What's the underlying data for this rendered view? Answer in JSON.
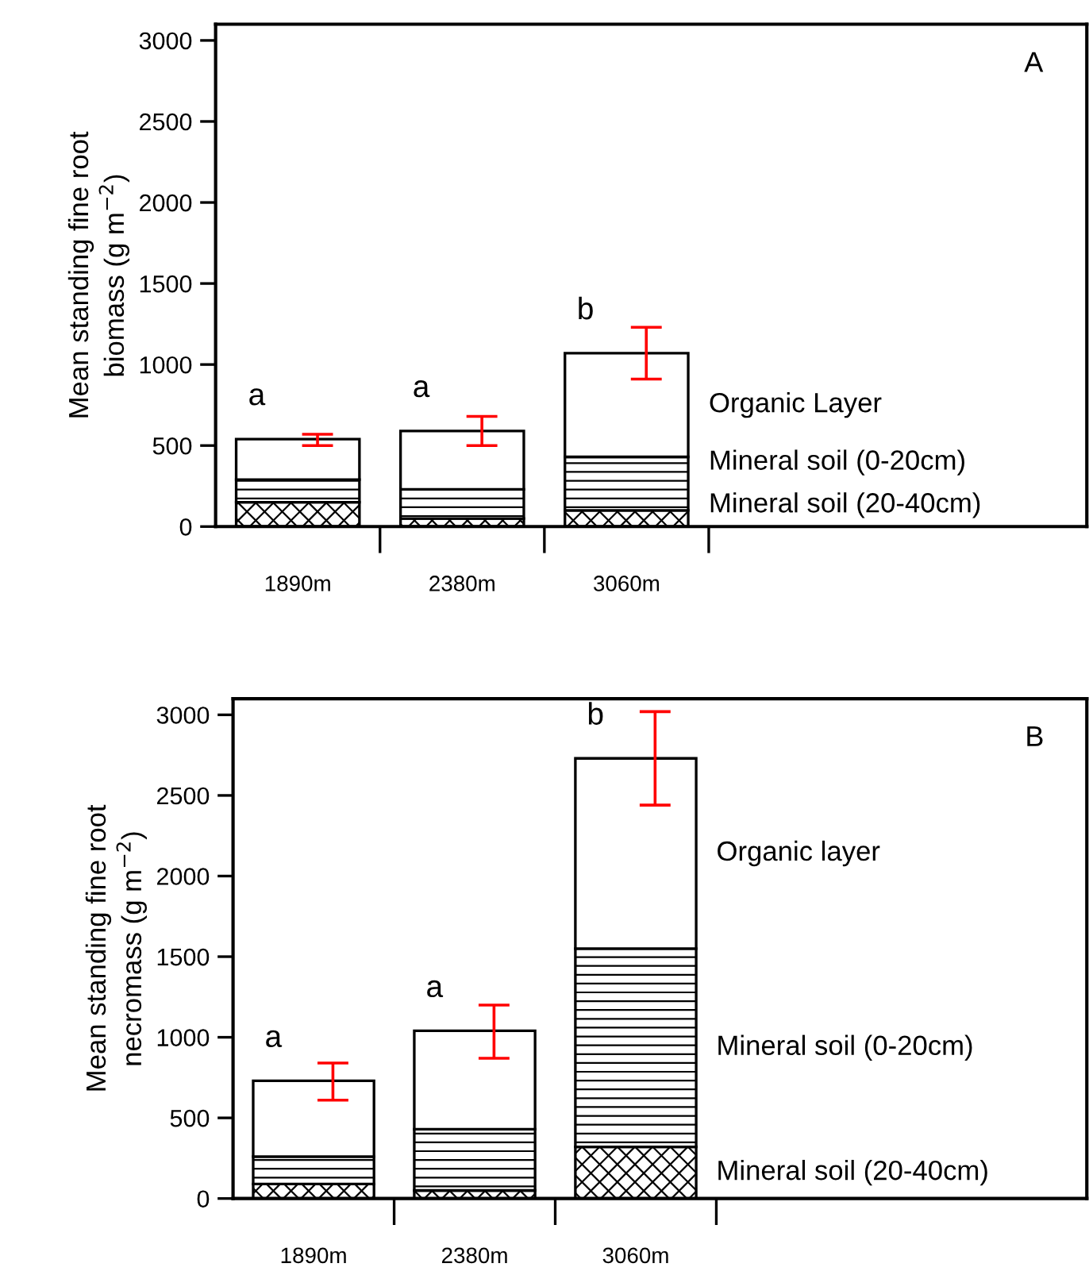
{
  "chart_data": [
    {
      "type": "bar",
      "stacked": true,
      "ylabel": "Mean standing fine root\nbiomass (g m$^{−2}$)",
      "categories": [
        "1890m",
        "2380m",
        "3060m"
      ],
      "ylim": [
        0,
        3100
      ],
      "yticks": [
        0,
        500,
        1000,
        1500,
        2000,
        2500,
        3000
      ],
      "grid": false,
      "legend": "right",
      "series": [
        {
          "name": "Mineral soil (20-40cm)",
          "values": [
            150,
            50,
            100
          ]
        },
        {
          "name": "Mineral soil (0-20cm)",
          "values": [
            140,
            180,
            330
          ]
        },
        {
          "name": "Organic Layer",
          "color": "#ffffff",
          "values": [
            250,
            360,
            640
          ],
          "errors": [
            [
              500,
              570
            ],
            [
              500,
              680
            ],
            [
              910,
              1230
            ]
          ]
        }
      ],
      "annotations": [
        "A",
        "a",
        "a",
        "b"
      ]
    },
    {
      "type": "bar",
      "stacked": true,
      "ylabel": "Mean standing fine root\nnecromass (g m$^{−2}$)",
      "categories": [
        "1890m",
        "2380m",
        "3060m"
      ],
      "ylim": [
        0,
        3100
      ],
      "yticks": [
        0,
        500,
        1000,
        1500,
        2000,
        2500,
        3000
      ],
      "grid": false,
      "legend": "right",
      "series": [
        {
          "name": "Mineral soil (20-40cm)",
          "values": [
            90,
            50,
            320
          ]
        },
        {
          "name": "Mineral soil (0-20cm)",
          "values": [
            170,
            380,
            1230
          ]
        },
        {
          "name": "Organic layer",
          "color": "#ffffff",
          "values": [
            470,
            610,
            1180
          ],
          "errors": [
            [
              610,
              840
            ],
            [
              870,
              1200
            ],
            [
              2440,
              3020
            ]
          ]
        }
      ],
      "annotations": [
        "B",
        "a",
        "a",
        "b"
      ]
    }
  ]
}
